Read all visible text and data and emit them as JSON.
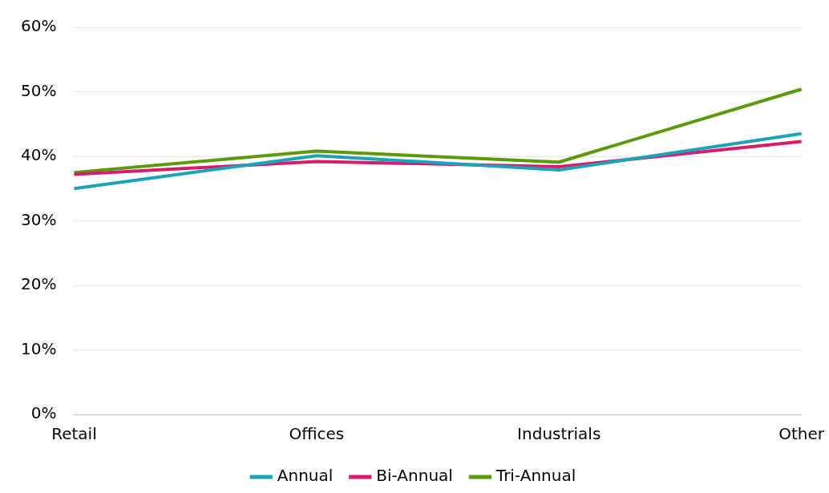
{
  "chart_data": {
    "type": "line",
    "categories": [
      "Retail",
      "Offices",
      "Industrials",
      "Other"
    ],
    "series": [
      {
        "name": "Annual",
        "color": "#1ba3bb",
        "values": [
          35.0,
          40.1,
          37.9,
          43.5
        ]
      },
      {
        "name": "Bi-Annual",
        "color": "#d81b6a",
        "values": [
          37.2,
          39.2,
          38.4,
          42.3
        ]
      },
      {
        "name": "Tri-Annual",
        "color": "#5b9a0a",
        "values": [
          37.5,
          40.8,
          39.1,
          50.4
        ]
      }
    ],
    "ylim": [
      0,
      60
    ],
    "yticks": [
      {
        "value": 0,
        "label": "0%"
      },
      {
        "value": 10,
        "label": "10%"
      },
      {
        "value": 20,
        "label": "20%"
      },
      {
        "value": 30,
        "label": "30%"
      },
      {
        "value": 40,
        "label": "40%"
      },
      {
        "value": 50,
        "label": "50%"
      },
      {
        "value": 60,
        "label": "60%"
      }
    ],
    "grid": "y",
    "legend": "bottom",
    "marker": "none",
    "line_style": "solid"
  }
}
